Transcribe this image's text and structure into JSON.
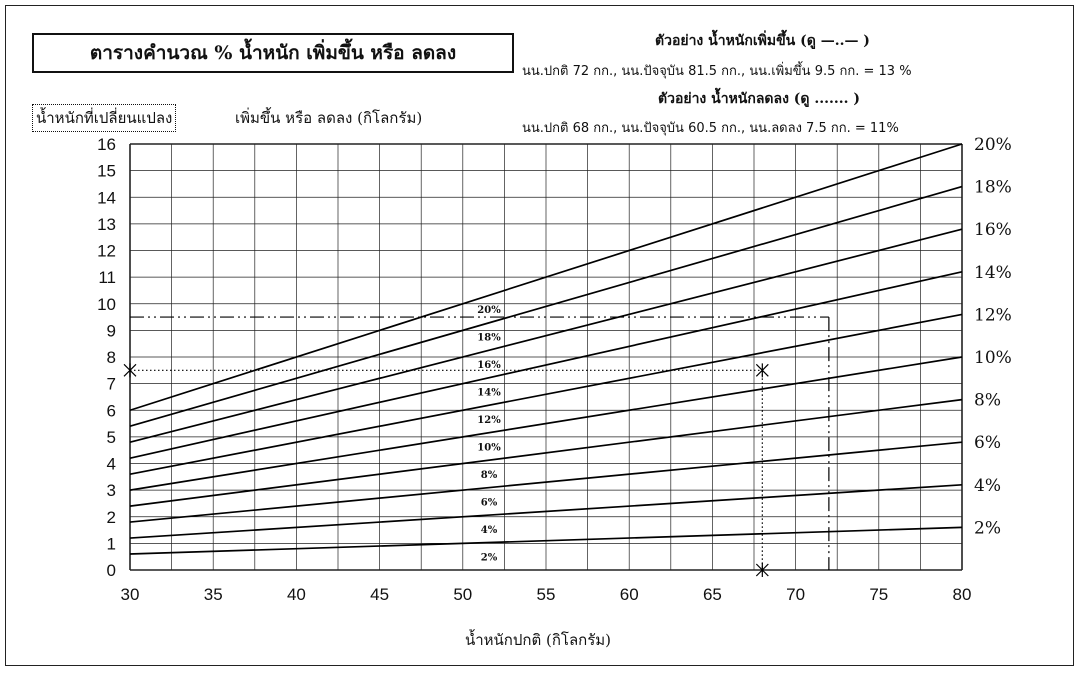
{
  "header": {
    "title": "ตารางคำนวณ % น้ำหนัก เพิ่มขึ้น หรือ ลดลง",
    "example_increase_title": "ตัวอย่าง น้ำหนักเพิ่มขึ้น (ดู —..— )",
    "example_increase_text": "นน.ปกติ 72 กก., นน.ปัจจุบัน 81.5 กก., นน.เพิ่มขึ้น 9.5 กก. = 13 %",
    "example_decrease_title": "ตัวอย่าง น้ำหนักลดลง (ดู ....... )",
    "example_decrease_text": "นน.ปกติ 68 กก., นน.ปัจจุบัน 60.5 กก., นน.ลดลง 7.5 กก. = 11%",
    "ylabel_boxed": "น้ำหนักที่เปลี่ยนแปลง",
    "ylabel_rest": "เพิ่มขึ้น หรือ ลดลง (กิโลกรัม)"
  },
  "chart_data": {
    "type": "line",
    "xlabel": "น้ำหนักปกติ (กิโลกรัม)",
    "ylabel": "น้ำหนักที่เปลี่ยนแปลง เพิ่มขึ้น หรือ ลดลง (กิโลกรัม)",
    "xlim": [
      30,
      80
    ],
    "ylim": [
      0,
      16
    ],
    "x_ticks": [
      "30",
      "35",
      "40",
      "45",
      "50",
      "55",
      "60",
      "65",
      "70",
      "75",
      "80"
    ],
    "y_ticks": [
      "0",
      "1",
      "2",
      "3",
      "4",
      "5",
      "6",
      "7",
      "8",
      "9",
      "10",
      "11",
      "12",
      "13",
      "14",
      "15",
      "16"
    ],
    "grid": true,
    "x": [
      30,
      80
    ],
    "series": [
      {
        "name": "2%",
        "percent": 2,
        "values": [
          0.6,
          1.6
        ]
      },
      {
        "name": "4%",
        "percent": 4,
        "values": [
          1.2,
          3.2
        ]
      },
      {
        "name": "6%",
        "percent": 6,
        "values": [
          1.8,
          4.8
        ]
      },
      {
        "name": "8%",
        "percent": 8,
        "values": [
          2.4,
          6.4
        ]
      },
      {
        "name": "10%",
        "percent": 10,
        "values": [
          3.0,
          8.0
        ]
      },
      {
        "name": "12%",
        "percent": 12,
        "values": [
          3.6,
          9.6
        ]
      },
      {
        "name": "14%",
        "percent": 14,
        "values": [
          4.2,
          11.2
        ]
      },
      {
        "name": "16%",
        "percent": 16,
        "values": [
          4.8,
          12.8
        ]
      },
      {
        "name": "18%",
        "percent": 18,
        "values": [
          5.4,
          14.4
        ]
      },
      {
        "name": "20%",
        "percent": 20,
        "values": [
          6.0,
          16.0
        ]
      }
    ],
    "inline_labels": [
      "2%",
      "4%",
      "6%",
      "8%",
      "10%",
      "12%",
      "14%",
      "16%",
      "18%",
      "20%"
    ],
    "right_labels": [
      "2%",
      "4%",
      "6%",
      "8%",
      "10%",
      "12%",
      "14%",
      "16%",
      "18%",
      "20%"
    ],
    "examples": [
      {
        "kind": "increase",
        "style": "dash-dot-dot",
        "normal_weight": 72,
        "change": 9.5
      },
      {
        "kind": "decrease",
        "style": "dotted",
        "normal_weight": 68,
        "change": 7.5
      }
    ]
  }
}
